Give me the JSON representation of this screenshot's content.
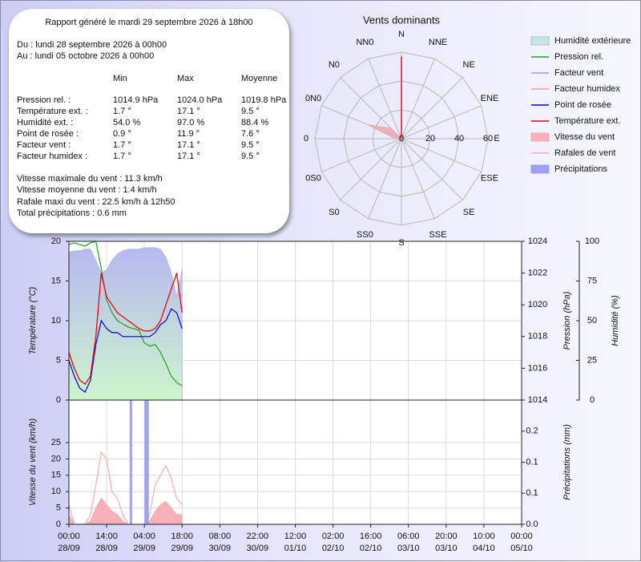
{
  "report": {
    "title": "Rapport généré le mardi 29 septembre 2026 à 18h00",
    "from": "Du : lundi 28 septembre 2026 à 00h00",
    "to": "Au : lundi 05 octobre 2026 à 00h00",
    "header": [
      "Min",
      "Max",
      "Moyenne"
    ],
    "rows": [
      [
        "Pression rel. :",
        "1014.9 hPa",
        "1024.0 hPa",
        "1019.8 hPa"
      ],
      [
        "Température ext. :",
        "1.7 °",
        "17.1 °",
        "9.5 °"
      ],
      [
        "Humidité ext. :",
        "54.0 %",
        "97.0 %",
        "88.4 %"
      ],
      [
        "Point de rosée :",
        "0.9 °",
        "11.9 °",
        "7.6 °"
      ],
      [
        "Facteur vent :",
        "1.7 °",
        "17.1 °",
        "9.5 °"
      ],
      [
        "Facteur humidex :",
        "1.7 °",
        "17.1 °",
        "9.5 °"
      ]
    ],
    "notes": [
      "Vitesse maximale du vent : 11.3 km/h",
      "Vitesse moyenne du vent : 1.4 km/h",
      "Rafale maxi du vent : 22.5 km/h à 12h50",
      "Total précipitations : 0.6 mm"
    ]
  },
  "chart_data": [
    {
      "type": "polar",
      "title": "Vents dominants",
      "categories": [
        "N",
        "NNE",
        "NE",
        "ENE",
        "E",
        "ESE",
        "SE",
        "SSE",
        "S",
        "SS0",
        "S0",
        "0S0",
        "0",
        "0N0",
        "N0",
        "NN0"
      ],
      "rlim": [
        0,
        60
      ],
      "rticks": [
        0,
        20,
        40,
        60
      ],
      "series": [
        {
          "color": "#eea4b0",
          "values": [
            0,
            0,
            0,
            0,
            0,
            0,
            0,
            0,
            0,
            0,
            0,
            0,
            4,
            25,
            10,
            0
          ]
        },
        {
          "color": "#ee4455",
          "values": [
            57,
            0,
            0,
            0,
            0,
            0,
            0,
            0,
            0,
            0,
            0,
            0,
            0,
            0,
            0,
            0
          ]
        }
      ]
    },
    {
      "type": "line",
      "x": [
        0,
        2,
        4,
        6,
        8,
        10,
        12,
        14,
        16,
        18,
        20,
        22,
        24,
        26,
        28,
        30,
        32,
        34,
        36,
        38,
        40,
        42
      ],
      "xlim": [
        0,
        168
      ],
      "ylabel": "Température (°C)",
      "ylim": [
        0,
        20
      ],
      "yticks": [
        0,
        5,
        10,
        15,
        20
      ],
      "y2label": "Pression (hPa)",
      "y2lim": [
        1014,
        1024
      ],
      "y2ticks": [
        1014,
        1016,
        1018,
        1020,
        1022,
        1024
      ],
      "y3label": "Humidité (%)",
      "y3lim": [
        0,
        100
      ],
      "y3ticks": [
        0,
        25,
        50,
        75,
        100
      ],
      "grid": true,
      "series": [
        {
          "name": "Humidité extérieure",
          "type": "area",
          "axis": "y3",
          "color": "#b8b8f0",
          "values": [
            93,
            94,
            94,
            95,
            95,
            88,
            80,
            82,
            88,
            92,
            94,
            95,
            95,
            95,
            96,
            96,
            96,
            95,
            90,
            80,
            65,
            82
          ]
        },
        {
          "name": "Pression rel.",
          "type": "line",
          "axis": "y2",
          "color": "#22a022",
          "values": [
            1023.8,
            1023.9,
            1023.8,
            1023.7,
            1023.9,
            1024.0,
            1022.3,
            1020.3,
            1019.5,
            1019.0,
            1018.8,
            1018.6,
            1018.5,
            1018.4,
            1017.6,
            1017.4,
            1017.5,
            1017.0,
            1016.3,
            1015.5,
            1015.1,
            1014.9
          ]
        },
        {
          "name": "Facteur vent",
          "type": "line",
          "axis": "y",
          "color": "#9999ee",
          "values": [
            6,
            4,
            2.5,
            2,
            3,
            8,
            16,
            13,
            12,
            11,
            10.5,
            10,
            9.5,
            9,
            8.7,
            8.7,
            9,
            10,
            12,
            14,
            16,
            11
          ]
        },
        {
          "name": "Facteur humidex",
          "type": "line",
          "axis": "y",
          "color": "#ff9999",
          "values": [
            6,
            4,
            2.5,
            2,
            3,
            8,
            16,
            13,
            12,
            11,
            10.5,
            10,
            9.5,
            9,
            8.7,
            8.7,
            9,
            10,
            12,
            14,
            16,
            11
          ]
        },
        {
          "name": "Point de rosée",
          "type": "line",
          "axis": "y",
          "color": "#0000dd",
          "values": [
            5,
            3,
            1.5,
            1,
            2.5,
            7,
            10,
            9,
            8.5,
            8.5,
            8,
            8,
            8,
            8,
            8,
            8,
            8.5,
            9.5,
            10,
            11.5,
            11,
            9
          ]
        },
        {
          "name": "Température ext.",
          "type": "line",
          "axis": "y",
          "color": "#ee0000",
          "values": [
            6,
            4,
            2.5,
            2,
            3,
            8,
            16,
            13,
            12,
            11,
            10.5,
            10,
            9.5,
            9,
            8.7,
            8.7,
            9,
            10,
            12,
            14,
            16,
            11
          ]
        }
      ]
    },
    {
      "type": "line",
      "x": [
        0,
        2,
        4,
        6,
        8,
        10,
        12,
        14,
        16,
        18,
        20,
        22,
        24,
        26,
        28,
        30,
        32,
        34,
        36,
        38,
        40,
        42
      ],
      "xlim": [
        0,
        168
      ],
      "xticks": [
        {
          "value": 0,
          "label": [
            "00:00",
            "28/09"
          ]
        },
        {
          "value": 14,
          "label": [
            "14:00",
            "28/09"
          ]
        },
        {
          "value": 28,
          "label": [
            "04:00",
            "29/09"
          ]
        },
        {
          "value": 42,
          "label": [
            "18:00",
            "29/09"
          ]
        },
        {
          "value": 56,
          "label": [
            "08:00",
            "30/09"
          ]
        },
        {
          "value": 70,
          "label": [
            "22:00",
            "30/09"
          ]
        },
        {
          "value": 84,
          "label": [
            "12:00",
            "01/10"
          ]
        },
        {
          "value": 98,
          "label": [
            "02:00",
            "02/10"
          ]
        },
        {
          "value": 112,
          "label": [
            "16:00",
            "02/10"
          ]
        },
        {
          "value": 126,
          "label": [
            "06:00",
            "03/10"
          ]
        },
        {
          "value": 140,
          "label": [
            "20:00",
            "03/10"
          ]
        },
        {
          "value": 154,
          "label": [
            "10:00",
            "04/10"
          ]
        },
        {
          "value": 168,
          "label": [
            "00:00",
            "05/10"
          ]
        }
      ],
      "ylabel": "Vitesse du vent (km/h)",
      "ylim": [
        0,
        38
      ],
      "yticks": [
        0,
        5,
        10,
        15,
        20,
        25
      ],
      "y2label": "Précipitations (mm)",
      "y2lim": [
        0,
        0.2
      ],
      "y2ticks": [
        {
          "value": 0,
          "label": "0.0"
        },
        {
          "value": 0.05,
          "label": "0.1"
        },
        {
          "value": 0.1,
          "label": "0.1"
        },
        {
          "value": 0.15,
          "label": "0.2"
        }
      ],
      "grid": true,
      "series": [
        {
          "name": "Vitesse du vent",
          "type": "area",
          "axis": "y",
          "color": "#f5b0b8",
          "values": [
            3,
            0,
            0,
            0,
            1,
            5,
            8,
            6,
            4,
            3,
            1,
            0,
            0,
            0,
            0,
            1,
            4,
            6,
            7,
            5,
            3,
            3
          ]
        },
        {
          "name": "Rafales de vent",
          "type": "line",
          "axis": "y",
          "color": "#ffaaaa",
          "values": [
            6,
            0,
            0,
            0,
            3,
            12,
            22,
            20,
            10,
            8,
            3,
            0,
            0,
            0,
            0,
            3,
            12,
            15,
            18,
            14,
            8,
            6
          ]
        },
        {
          "name": "Précipitations",
          "type": "bar",
          "axis": "y2",
          "color": "#a0a0f0",
          "x": [
            23,
            28.5,
            29.2
          ],
          "values": [
            0.2,
            0.2,
            0.2
          ]
        }
      ]
    }
  ]
}
